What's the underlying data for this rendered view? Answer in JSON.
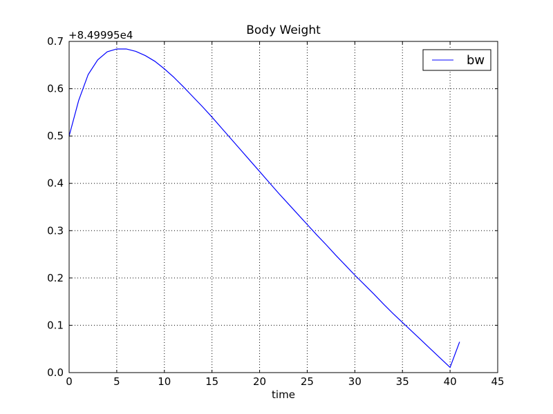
{
  "chart_data": {
    "type": "line",
    "title": "Body Weight",
    "xlabel": "time",
    "ylabel": "",
    "offset_label": "+8.49995e4",
    "xlim": [
      0,
      45
    ],
    "ylim": [
      0.0,
      0.7
    ],
    "xticks": [
      0,
      5,
      10,
      15,
      20,
      25,
      30,
      35,
      40,
      45
    ],
    "xtick_labels": [
      "0",
      "5",
      "10",
      "15",
      "20",
      "25",
      "30",
      "35",
      "40",
      "45"
    ],
    "yticks": [
      0.0,
      0.1,
      0.2,
      0.3,
      0.4,
      0.5,
      0.6,
      0.7
    ],
    "ytick_labels": [
      "0.0",
      "0.1",
      "0.2",
      "0.3",
      "0.4",
      "0.5",
      "0.6",
      "0.7"
    ],
    "grid": true,
    "grid_style": "dotted",
    "legend_position": "top-right",
    "series": [
      {
        "name": "bw",
        "color": "#0000ff",
        "x": [
          0,
          1,
          2,
          3,
          4,
          5,
          6,
          7,
          8,
          9,
          10,
          11,
          12,
          13,
          14,
          15,
          16,
          17,
          18,
          19,
          20,
          21,
          22,
          23,
          24,
          25,
          26,
          27,
          28,
          29,
          30,
          31,
          32,
          33,
          34,
          35,
          36,
          37,
          38,
          39,
          40,
          41
        ],
        "values": [
          0.5,
          0.575,
          0.63,
          0.661,
          0.678,
          0.684,
          0.684,
          0.679,
          0.67,
          0.658,
          0.642,
          0.624,
          0.604,
          0.583,
          0.562,
          0.54,
          0.517,
          0.494,
          0.471,
          0.448,
          0.425,
          0.402,
          0.379,
          0.357,
          0.335,
          0.313,
          0.291,
          0.27,
          0.248,
          0.227,
          0.206,
          0.186,
          0.166,
          0.145,
          0.125,
          0.106,
          0.087,
          0.068,
          0.049,
          0.03,
          0.011,
          0.065
        ]
      }
    ]
  }
}
